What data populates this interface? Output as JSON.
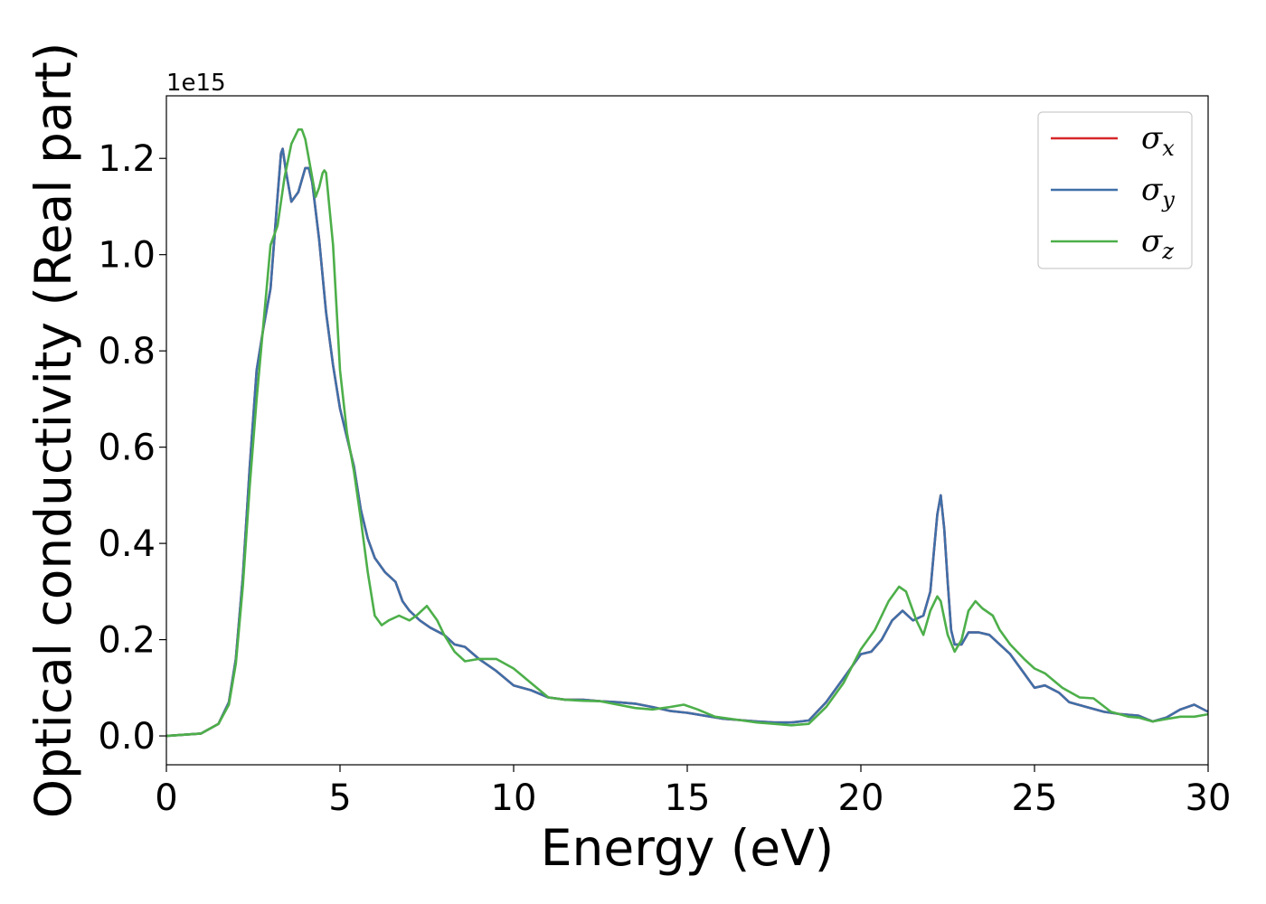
{
  "chart_data": {
    "type": "line",
    "xlabel": "Energy (eV)",
    "ylabel": "Optical conductivity (Real part)",
    "y_offset_label": "1e15",
    "xlim": [
      0,
      30
    ],
    "ylim": [
      -0.06,
      1.33
    ],
    "xticks": [
      0,
      5,
      10,
      15,
      20,
      25,
      30
    ],
    "xtick_labels": [
      "0",
      "5",
      "10",
      "15",
      "20",
      "25",
      "30"
    ],
    "yticks": [
      0.0,
      0.2,
      0.4,
      0.6,
      0.8,
      1.0,
      1.2
    ],
    "ytick_labels": [
      "0.0",
      "0.2",
      "0.4",
      "0.6",
      "0.8",
      "1.0",
      "1.2"
    ],
    "grid": false,
    "legend_position": "top-right",
    "series": [
      {
        "name": "σx",
        "legend_base": "σ",
        "legend_sub": "x",
        "color": "#d62728",
        "x": [
          0,
          1,
          1.5,
          1.8,
          2.0,
          2.2,
          2.4,
          2.6,
          2.8,
          3.0,
          3.2,
          3.3,
          3.35,
          3.45,
          3.6,
          3.8,
          4.0,
          4.1,
          4.2,
          4.4,
          4.6,
          4.8,
          5.0,
          5.2,
          5.4,
          5.6,
          5.8,
          6.0,
          6.3,
          6.6,
          6.8,
          7.0,
          7.3,
          7.6,
          8.0,
          8.3,
          8.6,
          9.0,
          9.5,
          10.0,
          10.5,
          11.0,
          11.5,
          12.0,
          12.5,
          13.0,
          13.5,
          14.0,
          14.5,
          15.0,
          15.5,
          16.0,
          16.5,
          17.0,
          17.5,
          18.0,
          18.5,
          19.0,
          19.5,
          20.0,
          20.3,
          20.6,
          20.9,
          21.2,
          21.5,
          21.8,
          22.0,
          22.1,
          22.2,
          22.3,
          22.4,
          22.5,
          22.6,
          22.7,
          22.9,
          23.1,
          23.4,
          23.7,
          24.0,
          24.3,
          24.7,
          25.0,
          25.3,
          25.7,
          26.0,
          26.5,
          27.0,
          27.5,
          28.0,
          28.4,
          28.8,
          29.2,
          29.6,
          30.0
        ],
        "y": [
          0.0,
          0.005,
          0.025,
          0.07,
          0.16,
          0.33,
          0.56,
          0.76,
          0.85,
          0.93,
          1.12,
          1.21,
          1.22,
          1.17,
          1.11,
          1.13,
          1.18,
          1.18,
          1.15,
          1.03,
          0.88,
          0.77,
          0.68,
          0.62,
          0.56,
          0.47,
          0.41,
          0.37,
          0.34,
          0.32,
          0.28,
          0.26,
          0.24,
          0.225,
          0.21,
          0.19,
          0.185,
          0.16,
          0.135,
          0.105,
          0.095,
          0.08,
          0.075,
          0.075,
          0.072,
          0.07,
          0.067,
          0.06,
          0.052,
          0.048,
          0.042,
          0.036,
          0.033,
          0.03,
          0.028,
          0.028,
          0.032,
          0.07,
          0.12,
          0.17,
          0.175,
          0.2,
          0.24,
          0.26,
          0.24,
          0.25,
          0.3,
          0.38,
          0.46,
          0.5,
          0.43,
          0.32,
          0.22,
          0.19,
          0.19,
          0.215,
          0.215,
          0.21,
          0.19,
          0.17,
          0.13,
          0.1,
          0.105,
          0.09,
          0.07,
          0.06,
          0.05,
          0.045,
          0.042,
          0.03,
          0.038,
          0.055,
          0.065,
          0.05
        ]
      },
      {
        "name": "σy",
        "legend_base": "σ",
        "legend_sub": "y",
        "color": "#3f6fa8",
        "x": [
          0,
          1,
          1.5,
          1.8,
          2.0,
          2.2,
          2.4,
          2.6,
          2.8,
          3.0,
          3.2,
          3.3,
          3.35,
          3.45,
          3.6,
          3.8,
          4.0,
          4.1,
          4.2,
          4.4,
          4.6,
          4.8,
          5.0,
          5.2,
          5.4,
          5.6,
          5.8,
          6.0,
          6.3,
          6.6,
          6.8,
          7.0,
          7.3,
          7.6,
          8.0,
          8.3,
          8.6,
          9.0,
          9.5,
          10.0,
          10.5,
          11.0,
          11.5,
          12.0,
          12.5,
          13.0,
          13.5,
          14.0,
          14.5,
          15.0,
          15.5,
          16.0,
          16.5,
          17.0,
          17.5,
          18.0,
          18.5,
          19.0,
          19.5,
          20.0,
          20.3,
          20.6,
          20.9,
          21.2,
          21.5,
          21.8,
          22.0,
          22.1,
          22.2,
          22.3,
          22.4,
          22.5,
          22.6,
          22.7,
          22.9,
          23.1,
          23.4,
          23.7,
          24.0,
          24.3,
          24.7,
          25.0,
          25.3,
          25.7,
          26.0,
          26.5,
          27.0,
          27.5,
          28.0,
          28.4,
          28.8,
          29.2,
          29.6,
          30.0
        ],
        "y": [
          0.0,
          0.005,
          0.025,
          0.07,
          0.16,
          0.33,
          0.56,
          0.76,
          0.85,
          0.93,
          1.12,
          1.21,
          1.22,
          1.17,
          1.11,
          1.13,
          1.18,
          1.18,
          1.15,
          1.03,
          0.88,
          0.77,
          0.68,
          0.62,
          0.56,
          0.47,
          0.41,
          0.37,
          0.34,
          0.32,
          0.28,
          0.26,
          0.24,
          0.225,
          0.21,
          0.19,
          0.185,
          0.16,
          0.135,
          0.105,
          0.095,
          0.08,
          0.075,
          0.075,
          0.072,
          0.07,
          0.067,
          0.06,
          0.052,
          0.048,
          0.042,
          0.036,
          0.033,
          0.03,
          0.028,
          0.028,
          0.032,
          0.07,
          0.12,
          0.17,
          0.175,
          0.2,
          0.24,
          0.26,
          0.24,
          0.25,
          0.3,
          0.38,
          0.46,
          0.5,
          0.43,
          0.32,
          0.22,
          0.19,
          0.19,
          0.215,
          0.215,
          0.21,
          0.19,
          0.17,
          0.13,
          0.1,
          0.105,
          0.09,
          0.07,
          0.06,
          0.05,
          0.045,
          0.042,
          0.03,
          0.038,
          0.055,
          0.065,
          0.05
        ]
      },
      {
        "name": "σz",
        "legend_base": "σ",
        "legend_sub": "z",
        "color": "#4daf4a",
        "x": [
          0,
          1,
          1.5,
          1.8,
          2.0,
          2.2,
          2.4,
          2.6,
          2.8,
          3.0,
          3.2,
          3.4,
          3.6,
          3.8,
          3.9,
          4.0,
          4.2,
          4.3,
          4.4,
          4.5,
          4.55,
          4.6,
          4.8,
          5.0,
          5.2,
          5.4,
          5.6,
          5.8,
          6.0,
          6.2,
          6.4,
          6.7,
          7.0,
          7.2,
          7.5,
          7.8,
          8.0,
          8.3,
          8.6,
          9.0,
          9.5,
          10.0,
          10.5,
          11.0,
          11.5,
          12.0,
          12.5,
          13.0,
          13.5,
          14.0,
          14.5,
          14.9,
          15.3,
          15.8,
          16.5,
          17.0,
          17.5,
          18.0,
          18.5,
          19.0,
          19.5,
          20.0,
          20.4,
          20.8,
          21.1,
          21.3,
          21.6,
          21.8,
          22.0,
          22.2,
          22.3,
          22.5,
          22.7,
          22.9,
          23.1,
          23.3,
          23.5,
          23.8,
          24.0,
          24.3,
          24.7,
          25.0,
          25.3,
          25.8,
          26.3,
          26.7,
          27.2,
          27.7,
          28.0,
          28.4,
          28.8,
          29.2,
          29.6,
          30.0
        ],
        "y": [
          0.0,
          0.005,
          0.025,
          0.065,
          0.15,
          0.31,
          0.52,
          0.7,
          0.86,
          1.02,
          1.06,
          1.16,
          1.23,
          1.26,
          1.26,
          1.24,
          1.16,
          1.12,
          1.14,
          1.17,
          1.175,
          1.17,
          1.02,
          0.76,
          0.63,
          0.55,
          0.45,
          0.34,
          0.25,
          0.23,
          0.24,
          0.25,
          0.24,
          0.25,
          0.27,
          0.24,
          0.21,
          0.175,
          0.155,
          0.16,
          0.16,
          0.14,
          0.11,
          0.08,
          0.075,
          0.073,
          0.072,
          0.065,
          0.058,
          0.055,
          0.06,
          0.065,
          0.055,
          0.04,
          0.033,
          0.028,
          0.025,
          0.022,
          0.025,
          0.06,
          0.11,
          0.18,
          0.22,
          0.28,
          0.31,
          0.3,
          0.24,
          0.21,
          0.26,
          0.29,
          0.28,
          0.21,
          0.175,
          0.2,
          0.26,
          0.28,
          0.265,
          0.25,
          0.22,
          0.19,
          0.16,
          0.14,
          0.13,
          0.1,
          0.08,
          0.078,
          0.05,
          0.04,
          0.038,
          0.03,
          0.035,
          0.04,
          0.04,
          0.045
        ]
      }
    ]
  }
}
